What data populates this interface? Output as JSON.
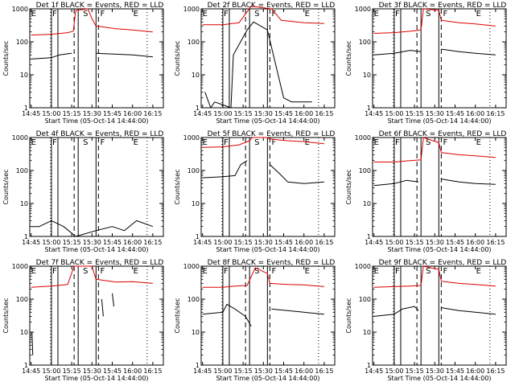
{
  "chart_data": [
    {
      "type": "line",
      "title": "Det 1f BLACK = Events, RED = LLD",
      "xlabel": "Start Time (05-Oct-14 14:44:00)",
      "ylabel": "Counts/sec",
      "x_ticks": [
        "14:45",
        "15:00",
        "15:15",
        "15:30",
        "15:45",
        "16:00",
        "16:15"
      ],
      "y_ticks": [
        "1",
        "10",
        "100",
        "1000"
      ],
      "ylim": [
        1,
        1000
      ],
      "y_scale": "log",
      "region_labels": [
        "E",
        "F",
        "S",
        "F",
        "E"
      ],
      "series": [
        {
          "color": "#000000",
          "values": [
            [
              14.75,
              30
            ],
            [
              15.0,
              33
            ],
            [
              15.1,
              40
            ],
            [
              15.25,
              45
            ],
            [
              15.27,
              null
            ],
            [
              15.52,
              null
            ],
            [
              15.55,
              45
            ],
            [
              15.8,
              42
            ],
            [
              16.0,
              40
            ],
            [
              16.25,
              35
            ]
          ]
        },
        {
          "color": "#dd0000",
          "values": [
            [
              14.75,
              160
            ],
            [
              15.0,
              170
            ],
            [
              15.2,
              190
            ],
            [
              15.27,
              210
            ],
            [
              15.3,
              900
            ],
            [
              15.45,
              1000
            ],
            [
              15.5,
              500
            ],
            [
              15.55,
              300
            ],
            [
              15.8,
              250
            ],
            [
              16.0,
              230
            ],
            [
              16.25,
              200
            ]
          ]
        }
      ]
    },
    {
      "type": "line",
      "title": "Det 2f BLACK = Events, RED = LLD",
      "xlabel": "Start Time (05-Oct-14 14:44:00)",
      "ylabel": "Counts/sec",
      "x_ticks": [
        "14:45",
        "15:00",
        "15:15",
        "15:30",
        "15:45",
        "16:00",
        "16:15"
      ],
      "y_ticks": [
        "1",
        "10",
        "100",
        "1000"
      ],
      "ylim": [
        1,
        1000
      ],
      "y_scale": "log",
      "region_labels": [
        "E",
        "F",
        "S",
        "F",
        "E"
      ],
      "series": [
        {
          "color": "#000000",
          "values": [
            [
              14.78,
              3
            ],
            [
              14.85,
              1
            ],
            [
              14.9,
              1.5
            ],
            [
              15.1,
              1
            ],
            [
              15.13,
              40
            ],
            [
              15.3,
              230
            ],
            [
              15.38,
              400
            ],
            [
              15.55,
              230
            ],
            [
              15.75,
              2
            ],
            [
              15.85,
              1.5
            ],
            [
              16.1,
              1.5
            ]
          ]
        },
        {
          "color": "#dd0000",
          "values": [
            [
              14.75,
              330
            ],
            [
              15.0,
              330
            ],
            [
              15.2,
              380
            ],
            [
              15.35,
              1200
            ],
            [
              15.6,
              1000
            ],
            [
              15.72,
              450
            ],
            [
              16.0,
              380
            ],
            [
              16.25,
              360
            ]
          ]
        }
      ]
    },
    {
      "type": "line",
      "title": "Det 3f BLACK = Events, RED = LLD",
      "xlabel": "Start Time (05-Oct-14 14:44:00)",
      "ylabel": "Counts/sec",
      "x_ticks": [
        "14:45",
        "15:00",
        "15:15",
        "15:30",
        "15:45",
        "16:00",
        "16:15"
      ],
      "y_ticks": [
        "1",
        "10",
        "100",
        "1000"
      ],
      "ylim": [
        1,
        1000
      ],
      "y_scale": "log",
      "region_labels": [
        "E",
        "F",
        "S",
        "F",
        "E"
      ],
      "series": [
        {
          "color": "#000000",
          "values": [
            [
              14.75,
              40
            ],
            [
              15.0,
              45
            ],
            [
              15.2,
              55
            ],
            [
              15.33,
              50
            ],
            [
              15.36,
              null
            ],
            [
              15.55,
              null
            ],
            [
              15.58,
              60
            ],
            [
              15.8,
              50
            ],
            [
              16.0,
              45
            ],
            [
              16.25,
              40
            ]
          ]
        },
        {
          "color": "#dd0000",
          "values": [
            [
              14.75,
              180
            ],
            [
              15.0,
              190
            ],
            [
              15.2,
              210
            ],
            [
              15.33,
              230
            ],
            [
              15.36,
              1000
            ],
            [
              15.55,
              900
            ],
            [
              15.58,
              450
            ],
            [
              15.8,
              380
            ],
            [
              16.0,
              350
            ],
            [
              16.25,
              300
            ]
          ]
        }
      ]
    },
    {
      "type": "line",
      "title": "Det 4f BLACK = Events, RED = LLD",
      "xlabel": "Start Time (05-Oct-14 14:44:00)",
      "ylabel": "Counts/sec",
      "x_ticks": [
        "14:45",
        "15:00",
        "15:15",
        "15:30",
        "15:45",
        "16:00",
        "16:15"
      ],
      "y_ticks": [
        "1",
        "10",
        "100",
        "1000"
      ],
      "ylim": [
        1,
        1000
      ],
      "y_scale": "log",
      "region_labels": [
        "E",
        "F",
        "S",
        "F",
        "E"
      ],
      "series": [
        {
          "color": "#000000",
          "values": [
            [
              14.75,
              2
            ],
            [
              14.85,
              2
            ],
            [
              15.0,
              3
            ],
            [
              15.15,
              2
            ],
            [
              15.3,
              1
            ],
            [
              15.55,
              1.5
            ],
            [
              15.75,
              2
            ],
            [
              15.9,
              1.5
            ],
            [
              16.05,
              3
            ],
            [
              16.25,
              2
            ]
          ]
        }
      ]
    },
    {
      "type": "line",
      "title": "Det 5f BLACK = Events, RED = LLD",
      "xlabel": "Start Time (05-Oct-14 14:44:00)",
      "ylabel": "Counts/sec",
      "x_ticks": [
        "14:45",
        "15:00",
        "15:15",
        "15:30",
        "15:45",
        "16:00",
        "16:15"
      ],
      "y_ticks": [
        "1",
        "10",
        "100",
        "1000"
      ],
      "ylim": [
        1,
        1000
      ],
      "y_scale": "log",
      "region_labels": [
        "E",
        "F",
        "S",
        "F",
        "E"
      ],
      "series": [
        {
          "color": "#000000",
          "values": [
            [
              14.75,
              60
            ],
            [
              15.0,
              65
            ],
            [
              15.15,
              70
            ],
            [
              15.22,
              150
            ],
            [
              15.3,
              200
            ],
            [
              15.33,
              null
            ],
            [
              15.55,
              null
            ],
            [
              15.58,
              150
            ],
            [
              15.7,
              80
            ],
            [
              15.8,
              45
            ],
            [
              16.0,
              40
            ],
            [
              16.25,
              45
            ]
          ]
        },
        {
          "color": "#dd0000",
          "values": [
            [
              14.75,
              500
            ],
            [
              15.0,
              520
            ],
            [
              15.2,
              600
            ],
            [
              15.33,
              800
            ],
            [
              15.36,
              1000
            ],
            [
              15.55,
              1000
            ],
            [
              15.58,
              900
            ],
            [
              15.8,
              800
            ],
            [
              16.0,
              750
            ],
            [
              16.25,
              650
            ]
          ]
        }
      ]
    },
    {
      "type": "line",
      "title": "Det 6f BLACK = Events, RED = LLD",
      "xlabel": "Start Time (05-Oct-14 14:44:00)",
      "ylabel": "Counts/sec",
      "x_ticks": [
        "14:45",
        "15:00",
        "15:15",
        "15:30",
        "15:45",
        "16:00",
        "16:15"
      ],
      "y_ticks": [
        "1",
        "10",
        "100",
        "1000"
      ],
      "ylim": [
        1,
        1000
      ],
      "y_scale": "log",
      "region_labels": [
        "E",
        "F",
        "S",
        "F",
        "E"
      ],
      "series": [
        {
          "color": "#000000",
          "values": [
            [
              14.75,
              35
            ],
            [
              15.0,
              40
            ],
            [
              15.15,
              50
            ],
            [
              15.3,
              45
            ],
            [
              15.33,
              null
            ],
            [
              15.55,
              null
            ],
            [
              15.58,
              55
            ],
            [
              15.8,
              45
            ],
            [
              16.0,
              40
            ],
            [
              16.25,
              38
            ]
          ]
        },
        {
          "color": "#dd0000",
          "values": [
            [
              14.75,
              180
            ],
            [
              15.0,
              180
            ],
            [
              15.2,
              200
            ],
            [
              15.33,
              210
            ],
            [
              15.36,
              1000
            ],
            [
              15.55,
              700
            ],
            [
              15.58,
              350
            ],
            [
              15.8,
              300
            ],
            [
              16.0,
              280
            ],
            [
              16.25,
              250
            ]
          ]
        }
      ]
    },
    {
      "type": "line",
      "title": "Det 7f BLACK = Events, RED = LLD",
      "xlabel": "Start Time (05-Oct-14 14:44:00)",
      "ylabel": "Counts/sec",
      "x_ticks": [
        "14:45",
        "15:00",
        "15:15",
        "15:30",
        "15:45",
        "16:00",
        "16:15"
      ],
      "y_ticks": [
        "1",
        "10",
        "100",
        "1000"
      ],
      "ylim": [
        1,
        1000
      ],
      "y_scale": "log",
      "region_labels": [
        "E",
        "F",
        "S",
        "F",
        "E"
      ],
      "series": [
        {
          "color": "#000000",
          "values": [
            [
              14.76,
              10
            ],
            [
              14.77,
              2
            ],
            [
              14.78,
              null
            ],
            [
              15.6,
              null
            ],
            [
              15.62,
              100
            ],
            [
              15.64,
              30
            ],
            [
              15.66,
              null
            ],
            [
              15.74,
              null
            ],
            [
              15.75,
              150
            ],
            [
              15.77,
              60
            ]
          ]
        },
        {
          "color": "#dd0000",
          "values": [
            [
              14.75,
              230
            ],
            [
              15.0,
              250
            ],
            [
              15.2,
              280
            ],
            [
              15.28,
              1000
            ],
            [
              15.5,
              1000
            ],
            [
              15.55,
              400
            ],
            [
              15.8,
              330
            ],
            [
              16.0,
              340
            ],
            [
              16.25,
              300
            ]
          ]
        }
      ]
    },
    {
      "type": "line",
      "title": "Det 8f BLACK = Events, RED = LLD",
      "xlabel": "Start Time (05-Oct-14 14:44:00)",
      "ylabel": "Counts/sec",
      "x_ticks": [
        "14:45",
        "15:00",
        "15:15",
        "15:30",
        "15:45",
        "16:00",
        "16:15"
      ],
      "y_ticks": [
        "1",
        "10",
        "100",
        "1000"
      ],
      "ylim": [
        1,
        1000
      ],
      "y_scale": "log",
      "region_labels": [
        "E",
        "F",
        "S",
        "F",
        "E"
      ],
      "series": [
        {
          "color": "#000000",
          "values": [
            [
              14.75,
              35
            ],
            [
              15.0,
              40
            ],
            [
              15.05,
              70
            ],
            [
              15.15,
              50
            ],
            [
              15.28,
              30
            ],
            [
              15.35,
              15
            ],
            [
              15.36,
              null
            ],
            [
              15.58,
              null
            ],
            [
              15.6,
              50
            ],
            [
              15.8,
              45
            ],
            [
              16.0,
              40
            ],
            [
              16.25,
              35
            ]
          ]
        },
        {
          "color": "#dd0000",
          "values": [
            [
              14.75,
              230
            ],
            [
              15.0,
              230
            ],
            [
              15.15,
              250
            ],
            [
              15.3,
              260
            ],
            [
              15.4,
              900
            ],
            [
              15.55,
              600
            ],
            [
              15.58,
              300
            ],
            [
              15.8,
              280
            ],
            [
              16.0,
              270
            ],
            [
              16.25,
              240
            ]
          ]
        }
      ]
    },
    {
      "type": "line",
      "title": "Det 9f BLACK = Events, RED = LLD",
      "xlabel": "Start Time (05-Oct-14 14:44:00)",
      "ylabel": "Counts/sec",
      "x_ticks": [
        "14:45",
        "15:00",
        "15:15",
        "15:30",
        "15:45",
        "16:00",
        "16:15"
      ],
      "y_ticks": [
        "1",
        "10",
        "100",
        "1000"
      ],
      "ylim": [
        1,
        1000
      ],
      "y_scale": "log",
      "region_labels": [
        "E",
        "F",
        "S",
        "F",
        "E"
      ],
      "series": [
        {
          "color": "#000000",
          "values": [
            [
              14.75,
              30
            ],
            [
              15.0,
              35
            ],
            [
              15.1,
              50
            ],
            [
              15.25,
              60
            ],
            [
              15.3,
              45
            ],
            [
              15.33,
              null
            ],
            [
              15.55,
              null
            ],
            [
              15.58,
              55
            ],
            [
              15.8,
              45
            ],
            [
              16.0,
              40
            ],
            [
              16.25,
              35
            ]
          ]
        },
        {
          "color": "#dd0000",
          "values": [
            [
              14.75,
              230
            ],
            [
              15.0,
              240
            ],
            [
              15.2,
              250
            ],
            [
              15.33,
              260
            ],
            [
              15.36,
              1000
            ],
            [
              15.55,
              800
            ],
            [
              15.58,
              350
            ],
            [
              15.8,
              300
            ],
            [
              16.0,
              280
            ],
            [
              16.25,
              250
            ]
          ]
        }
      ]
    }
  ]
}
